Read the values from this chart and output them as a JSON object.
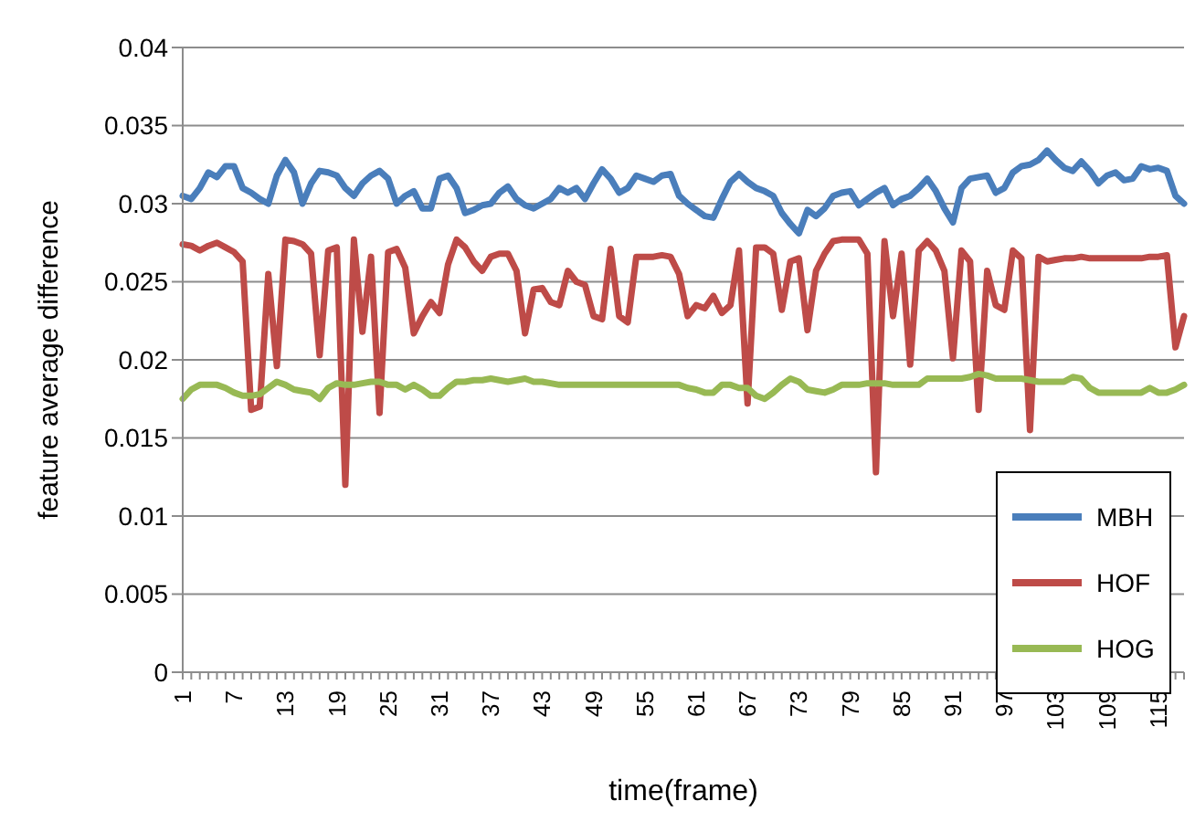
{
  "chart_data": {
    "type": "line",
    "xlabel": "time(frame)",
    "ylabel": "feature average difference",
    "categories": [
      "1",
      null,
      null,
      null,
      null,
      null,
      "7",
      null,
      null,
      null,
      null,
      null,
      "13",
      null,
      null,
      null,
      null,
      null,
      "19",
      null,
      null,
      null,
      null,
      null,
      "25",
      null,
      null,
      null,
      null,
      null,
      "31",
      null,
      null,
      null,
      null,
      null,
      "37",
      null,
      null,
      null,
      null,
      null,
      "43",
      null,
      null,
      null,
      null,
      null,
      "49",
      null,
      null,
      null,
      null,
      null,
      "55",
      null,
      null,
      null,
      null,
      null,
      "61",
      null,
      null,
      null,
      null,
      null,
      "67",
      null,
      null,
      null,
      null,
      null,
      "73",
      null,
      null,
      null,
      null,
      null,
      "79",
      null,
      null,
      null,
      null,
      null,
      "85",
      null,
      null,
      null,
      null,
      null,
      "91",
      null,
      null,
      null,
      null,
      null,
      "97",
      null,
      null,
      null,
      null,
      null,
      "103",
      null,
      null,
      null,
      null,
      null,
      "109",
      null,
      null,
      null,
      null,
      null,
      "115",
      null,
      null,
      null
    ],
    "series": [
      {
        "name": "MBH",
        "color": "#4a7ebb",
        "values": [
          0.0305,
          0.0303,
          0.031,
          0.032,
          0.0317,
          0.0324,
          0.0324,
          0.031,
          0.0307,
          0.0303,
          0.03,
          0.0318,
          0.0328,
          0.032,
          0.03,
          0.0313,
          0.0321,
          0.032,
          0.0318,
          0.031,
          0.0305,
          0.0313,
          0.0318,
          0.0321,
          0.0316,
          0.03,
          0.0305,
          0.0308,
          0.0297,
          0.0297,
          0.0316,
          0.0318,
          0.031,
          0.0294,
          0.0296,
          0.0299,
          0.03,
          0.0307,
          0.0311,
          0.0303,
          0.0299,
          0.0297,
          0.03,
          0.0303,
          0.031,
          0.0307,
          0.031,
          0.0303,
          0.0313,
          0.0322,
          0.0316,
          0.0307,
          0.031,
          0.0318,
          0.0316,
          0.0314,
          0.0318,
          0.0319,
          0.0305,
          0.03,
          0.0296,
          0.0292,
          0.0291,
          0.0303,
          0.0314,
          0.0319,
          0.0314,
          0.031,
          0.0308,
          0.0305,
          0.0294,
          0.0287,
          0.0281,
          0.0296,
          0.0292,
          0.0297,
          0.0305,
          0.0307,
          0.0308,
          0.0299,
          0.0303,
          0.0307,
          0.031,
          0.0299,
          0.0303,
          0.0305,
          0.031,
          0.0316,
          0.0308,
          0.0297,
          0.0288,
          0.031,
          0.0316,
          0.0317,
          0.0318,
          0.0307,
          0.031,
          0.032,
          0.0324,
          0.0325,
          0.0328,
          0.0334,
          0.0328,
          0.0323,
          0.0321,
          0.0327,
          0.0321,
          0.0313,
          0.0318,
          0.032,
          0.0315,
          0.0316,
          0.0324,
          0.0322,
          0.0323,
          0.0321,
          0.0305,
          0.03
        ]
      },
      {
        "name": "HOF",
        "color": "#be4b48",
        "values": [
          0.0274,
          0.0273,
          0.027,
          0.0273,
          0.0275,
          0.0272,
          0.0269,
          0.0263,
          0.0168,
          0.017,
          0.0255,
          0.0196,
          0.0277,
          0.0276,
          0.0274,
          0.0268,
          0.0203,
          0.027,
          0.0272,
          0.012,
          0.0277,
          0.0218,
          0.0266,
          0.0166,
          0.0269,
          0.0271,
          0.0259,
          0.0217,
          0.0228,
          0.0237,
          0.023,
          0.0261,
          0.0277,
          0.0272,
          0.0263,
          0.0257,
          0.0266,
          0.0268,
          0.0268,
          0.0257,
          0.0217,
          0.0245,
          0.0246,
          0.0237,
          0.0235,
          0.0257,
          0.025,
          0.0248,
          0.0228,
          0.0226,
          0.0271,
          0.0228,
          0.0224,
          0.0266,
          0.0266,
          0.0266,
          0.0267,
          0.0266,
          0.0255,
          0.0228,
          0.0235,
          0.0233,
          0.0241,
          0.023,
          0.0235,
          0.027,
          0.0172,
          0.0272,
          0.0272,
          0.0268,
          0.0232,
          0.0263,
          0.0265,
          0.0219,
          0.0257,
          0.0268,
          0.0276,
          0.0277,
          0.0277,
          0.0277,
          0.0268,
          0.0128,
          0.0276,
          0.0228,
          0.0268,
          0.0197,
          0.027,
          0.0276,
          0.027,
          0.0257,
          0.0201,
          0.027,
          0.0263,
          0.0168,
          0.0257,
          0.0235,
          0.0232,
          0.027,
          0.0265,
          0.0155,
          0.0266,
          0.0263,
          0.0264,
          0.0265,
          0.0265,
          0.0266,
          0.0265,
          0.0265,
          0.0265,
          0.0265,
          0.0265,
          0.0265,
          0.0265,
          0.0266,
          0.0266,
          0.0267,
          0.0208,
          0.0228
        ]
      },
      {
        "name": "HOG",
        "color": "#98b954",
        "values": [
          0.0175,
          0.0181,
          0.0184,
          0.0184,
          0.0184,
          0.0182,
          0.0179,
          0.0177,
          0.0177,
          0.0178,
          0.0182,
          0.0186,
          0.0184,
          0.0181,
          0.018,
          0.0179,
          0.0175,
          0.0182,
          0.0185,
          0.0184,
          0.0184,
          0.0185,
          0.0186,
          0.0186,
          0.0184,
          0.0184,
          0.0181,
          0.0184,
          0.0181,
          0.0177,
          0.0177,
          0.0182,
          0.0186,
          0.0186,
          0.0187,
          0.0187,
          0.0188,
          0.0187,
          0.0186,
          0.0187,
          0.0188,
          0.0186,
          0.0186,
          0.0185,
          0.0184,
          0.0184,
          0.0184,
          0.0184,
          0.0184,
          0.0184,
          0.0184,
          0.0184,
          0.0184,
          0.0184,
          0.0184,
          0.0184,
          0.0184,
          0.0184,
          0.0184,
          0.0182,
          0.0181,
          0.0179,
          0.0179,
          0.0184,
          0.0184,
          0.0182,
          0.0182,
          0.0177,
          0.0175,
          0.0179,
          0.0184,
          0.0188,
          0.0186,
          0.0181,
          0.018,
          0.0179,
          0.0181,
          0.0184,
          0.0184,
          0.0184,
          0.0185,
          0.0185,
          0.0185,
          0.0184,
          0.0184,
          0.0184,
          0.0184,
          0.0188,
          0.0188,
          0.0188,
          0.0188,
          0.0188,
          0.0189,
          0.0191,
          0.019,
          0.0188,
          0.0188,
          0.0188,
          0.0188,
          0.0187,
          0.0186,
          0.0186,
          0.0186,
          0.0186,
          0.0189,
          0.0188,
          0.0182,
          0.0179,
          0.0179,
          0.0179,
          0.0179,
          0.0179,
          0.0179,
          0.0182,
          0.0179,
          0.0179,
          0.0181,
          0.0184
        ]
      }
    ],
    "ylim": [
      0,
      0.04
    ],
    "yticks": [
      0,
      0.005,
      0.01,
      0.015,
      0.02,
      0.025,
      0.03,
      0.035,
      0.04
    ],
    "grid": "y",
    "legend": "bottom right",
    "marker": "none",
    "line_style": "solid"
  }
}
